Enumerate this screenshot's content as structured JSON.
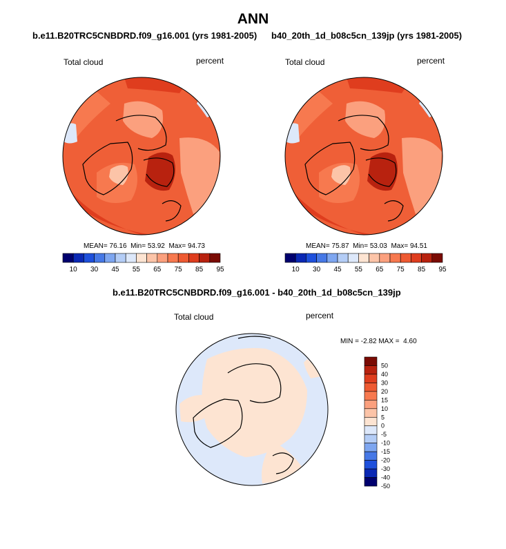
{
  "header": {
    "title": "ANN"
  },
  "panels": [
    {
      "title": "b.e11.B20TRC5CNBDRD.f09_g16.001 (yrs 1981-2005)",
      "variable": "Total cloud",
      "units": "percent",
      "stats": {
        "mean_label": "MEAN=",
        "mean": "76.16",
        "min_label": "Min=",
        "min": "53.92",
        "max_label": "Max=",
        "max": "94.73"
      }
    },
    {
      "title": "b40_20th_1d_b08c5cn_139jp (yrs 1981-2005)",
      "variable": "Total cloud",
      "units": "percent",
      "stats": {
        "mean_label": "MEAN=",
        "mean": "75.87",
        "min_label": "Min=",
        "min": "53.03",
        "max_label": "Max=",
        "max": "94.51"
      }
    }
  ],
  "diff_panel": {
    "title": "b.e11.B20TRC5CNBDRD.f09_g16.001 - b40_20th_1d_b08c5cn_139jp",
    "variable": "Total cloud",
    "units": "percent",
    "minmax": {
      "min_label": "MIN =",
      "min": "-2.82",
      "max_label": "MAX =",
      "max": "4.60"
    }
  },
  "chart_data": [
    {
      "type": "heatmap",
      "projection": "polar stereographic (north pole)",
      "title": "b.e11.B20TRC5CNBDRD.f09_g16.001 (yrs 1981-2005)",
      "field": "Total cloud",
      "units": "percent",
      "mean": 76.16,
      "min": 53.92,
      "max": 94.73,
      "colorbar_levels": [
        10,
        20,
        30,
        40,
        45,
        50,
        55,
        60,
        65,
        70,
        75,
        80,
        85,
        90,
        95
      ],
      "colorbar_tick_labels": [
        "10",
        "30",
        "45",
        "55",
        "65",
        "75",
        "85",
        "95"
      ]
    },
    {
      "type": "heatmap",
      "projection": "polar stereographic (north pole)",
      "title": "b40_20th_1d_b08c5cn_139jp (yrs 1981-2005)",
      "field": "Total cloud",
      "units": "percent",
      "mean": 75.87,
      "min": 53.03,
      "max": 94.51,
      "colorbar_levels": [
        10,
        20,
        30,
        40,
        45,
        50,
        55,
        60,
        65,
        70,
        75,
        80,
        85,
        90,
        95
      ],
      "colorbar_tick_labels": [
        "10",
        "30",
        "45",
        "55",
        "65",
        "75",
        "85",
        "95"
      ]
    },
    {
      "type": "heatmap",
      "projection": "polar stereographic (north pole)",
      "title": "b.e11.B20TRC5CNBDRD.f09_g16.001 - b40_20th_1d_b08c5cn_139jp",
      "field": "Total cloud",
      "units": "percent",
      "min": -2.82,
      "max": 4.6,
      "colorbar_levels": [
        50,
        40,
        30,
        20,
        15,
        10,
        5,
        0,
        -5,
        -10,
        -15,
        -20,
        -30,
        -40,
        -50
      ],
      "colorbar_tick_labels": [
        "50",
        "40",
        "30",
        "20",
        "15",
        "10",
        "5",
        "0",
        "-5",
        "-10",
        "-15",
        "-20",
        "-30",
        "-40",
        "-50"
      ]
    }
  ],
  "palettes": {
    "abs": [
      "#00006e",
      "#0a28b4",
      "#1e50dc",
      "#4678e6",
      "#7ea6f0",
      "#b4cdf6",
      "#dde8fa",
      "#fde4d2",
      "#fcc4a8",
      "#fba07e",
      "#f7794f",
      "#ee5a32",
      "#df3d1e",
      "#b8220f",
      "#7a0b04"
    ],
    "diff": [
      "#7a0b04",
      "#b8220f",
      "#df3d1e",
      "#ee5a32",
      "#f7794f",
      "#fba07e",
      "#fcc4a8",
      "#fde4d2",
      "#dde8fa",
      "#b4cdf6",
      "#7ea6f0",
      "#4678e6",
      "#1e50dc",
      "#0a28b4",
      "#00006e"
    ]
  }
}
